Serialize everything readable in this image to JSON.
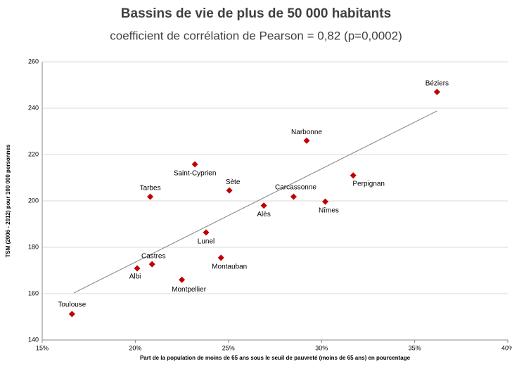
{
  "chart_data": {
    "type": "scatter",
    "title": "Bassins de vie de plus de 50 000 habitants",
    "subtitle": "coefficient de corrélation de Pearson = 0,82 (p=0,0002)",
    "x_label": "Part de la population de moins de 65 ans sous le seuil de pauvreté (moins de 65 ans) en pourcentage",
    "y_label": "TSM (2006 - 2012) pour 100 000 personnes",
    "categories": [
      "Béziers",
      "Narbonne",
      "Perpignan",
      "Nîmes",
      "Carcassonne",
      "Alès",
      "Sète",
      "Saint-Cyprien",
      "Tarbes",
      "Lunel",
      "Montauban",
      "Castres",
      "Albi",
      "Montpellier",
      "Toulouse"
    ],
    "x": [
      36.2,
      29.2,
      31.7,
      30.2,
      28.5,
      26.9,
      25.05,
      23.2,
      20.8,
      23.8,
      24.6,
      20.9,
      20.1,
      22.5,
      16.6
    ],
    "values": [
      247,
      226,
      211,
      199.7,
      201.8,
      198,
      204.5,
      215.8,
      201.8,
      186.4,
      175.5,
      172.7,
      170.9,
      166,
      151.2
    ],
    "color": "#c00000",
    "trendline": {
      "x": [
        16.7,
        36.2
      ],
      "values": [
        160.3,
        238.8
      ],
      "color": "#808080"
    },
    "xlim": [
      15,
      40
    ],
    "xticks": [
      {
        "value": 15,
        "label": "15%"
      },
      {
        "value": 20,
        "label": "20%"
      },
      {
        "value": 25,
        "label": "25%"
      },
      {
        "value": 30,
        "label": "30%"
      },
      {
        "value": 35,
        "label": "35%"
      },
      {
        "value": 40,
        "label": "40%"
      }
    ],
    "ylim": [
      140,
      260
    ],
    "yticks": [
      140,
      160,
      180,
      200,
      220,
      240,
      260
    ],
    "grid": true
  }
}
